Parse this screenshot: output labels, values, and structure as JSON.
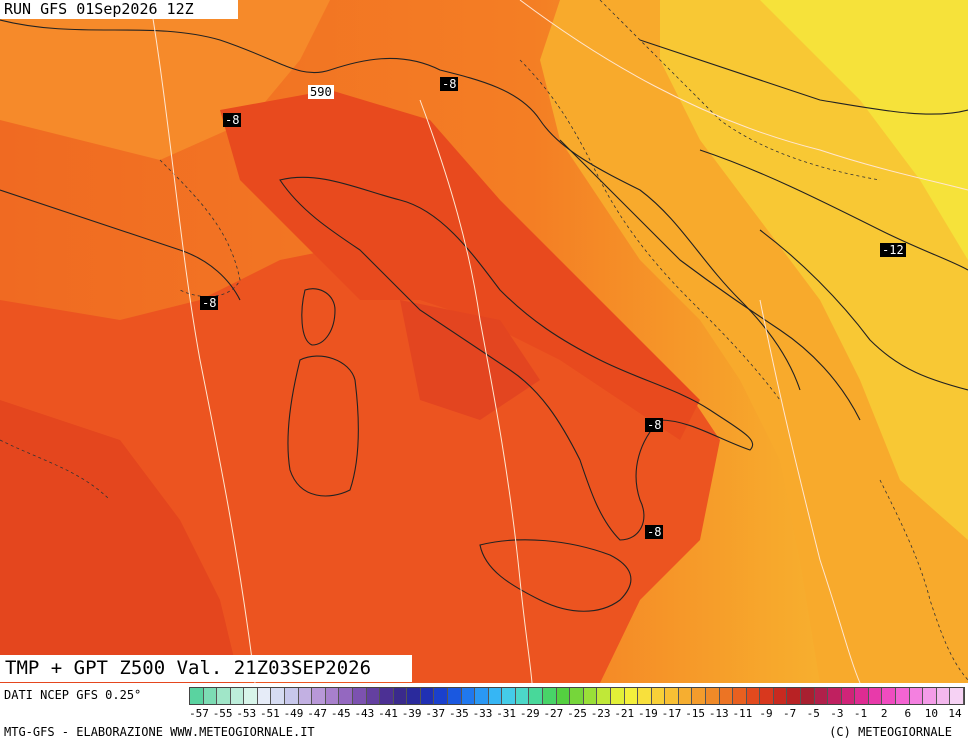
{
  "header": {
    "run_title": "RUN GFS 01Sep2026 12Z"
  },
  "footer": {
    "valid_title": "TMP + GPT Z500 Val. 21Z03SEP2026",
    "credit_ncep": "DATI NCEP GFS 0.25°",
    "credit_left": "MTG-GFS - ELABORAZIONE WWW.METEOGIORNALE.IT",
    "credit_right": "(C) METEOGIORNALE"
  },
  "map_labels": [
    {
      "id": "gpt-590",
      "text": "590",
      "style": "light"
    },
    {
      "id": "t-m8-a",
      "text": "-8",
      "style": "dark"
    },
    {
      "id": "t-m8-b",
      "text": "-8",
      "style": "dark"
    },
    {
      "id": "t-m8-c",
      "text": "-8",
      "style": "dark"
    },
    {
      "id": "t-m8-d",
      "text": "-8",
      "style": "dark"
    },
    {
      "id": "t-m8-e",
      "text": "-8",
      "style": "dark"
    },
    {
      "id": "t-m12",
      "text": "-12",
      "style": "dark"
    }
  ],
  "legend": {
    "ticks": [
      "-57",
      "-55",
      "-53",
      "-51",
      "-49",
      "-47",
      "-45",
      "-43",
      "-41",
      "-39",
      "-37",
      "-35",
      "-33",
      "-31",
      "-29",
      "-27",
      "-25",
      "-23",
      "-21",
      "-19",
      "-17",
      "-15",
      "-13",
      "-11",
      "-9",
      "-7",
      "-5",
      "-3",
      "-1",
      "2",
      "6",
      "10",
      "14"
    ],
    "colors": [
      "#5ad3a0",
      "#7ddcb4",
      "#a0e6c8",
      "#bdeedb",
      "#d8f5ea",
      "#e6ecf8",
      "#d6dcf2",
      "#c8c8ec",
      "#c2b0e2",
      "#b898d8",
      "#a880cc",
      "#9468c0",
      "#7c52b0",
      "#6440a0",
      "#4c3094",
      "#3a2a8c",
      "#2a2a9c",
      "#2030b4",
      "#1a40cc",
      "#1a58e0",
      "#2078ee",
      "#2a98f4",
      "#36b6f4",
      "#44cce8",
      "#4cd8c8",
      "#48d89a",
      "#48d468",
      "#54d040",
      "#76d63a",
      "#9ae038",
      "#c0e838",
      "#e2f038",
      "#f4f03c",
      "#f8e03c",
      "#f8d038",
      "#f8c034",
      "#f6ae30",
      "#f49c2c",
      "#f08a28",
      "#ec7424",
      "#e86020",
      "#e24a1e",
      "#d8381e",
      "#c82a20",
      "#b82224",
      "#a82030",
      "#b0204a",
      "#c02060",
      "#d02478",
      "#de2c92",
      "#e83aaa",
      "#f04cc0",
      "#f464d2",
      "#f480e0",
      "#f49ce8",
      "#f4b8ee",
      "#f6d2f4"
    ]
  }
}
